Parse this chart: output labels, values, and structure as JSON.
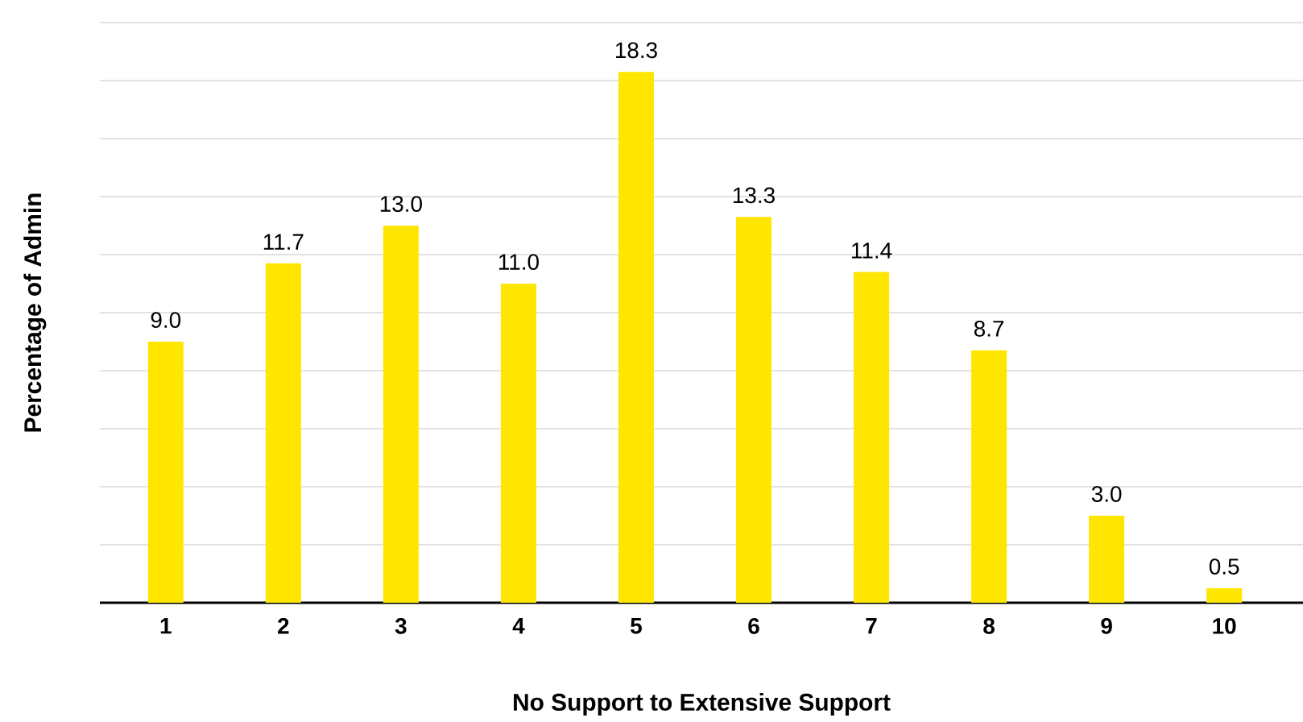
{
  "chart_data": {
    "type": "bar",
    "xlabel": "No Support to Extensive Support",
    "ylabel": "Percentage of Admin",
    "categories": [
      "1",
      "2",
      "3",
      "4",
      "5",
      "6",
      "7",
      "8",
      "9",
      "10"
    ],
    "values": [
      9.0,
      11.7,
      13.0,
      11.0,
      18.3,
      13.3,
      11.4,
      8.7,
      3.0,
      0.5
    ],
    "value_labels": [
      "9.0",
      "11.7",
      "13.0",
      "11.0",
      "18.3",
      "13.3",
      "11.4",
      "8.7",
      "3.0",
      "0.5"
    ],
    "color": "#ffe600",
    "ylim": [
      0,
      20
    ],
    "yticks": [
      {
        "value": 0,
        "label": null
      },
      {
        "value": 2,
        "label": null
      },
      {
        "value": 4,
        "label": null
      },
      {
        "value": 6,
        "label": null
      },
      {
        "value": 8,
        "label": null
      },
      {
        "value": 10,
        "label": null
      },
      {
        "value": 12,
        "label": null
      },
      {
        "value": 14,
        "label": null
      },
      {
        "value": 16,
        "label": null
      },
      {
        "value": 18,
        "label": null
      },
      {
        "value": 20,
        "label": null
      }
    ],
    "tick_labels": "x",
    "grid": "y"
  }
}
